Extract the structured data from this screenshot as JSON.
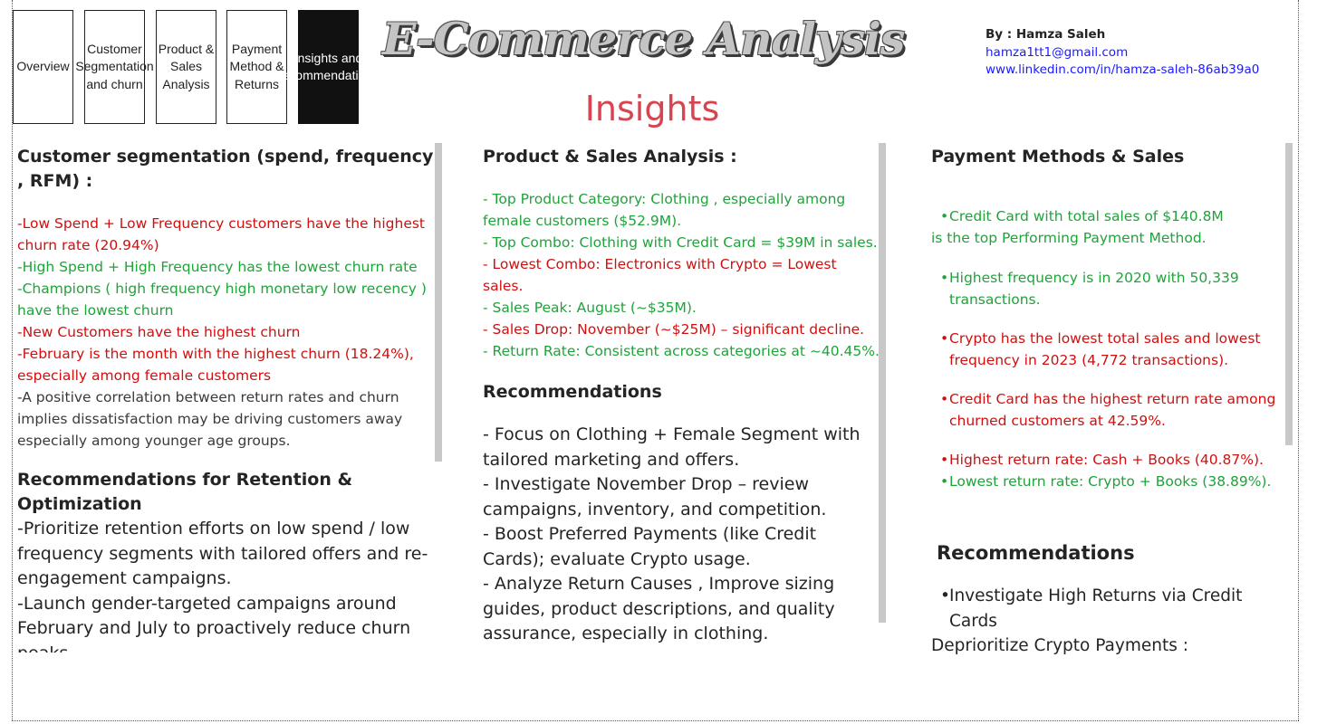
{
  "nav": [
    {
      "label": "Overview",
      "active": false
    },
    {
      "label": "Customer Segmentation and churn",
      "active": false
    },
    {
      "label": "Product & Sales Analysis",
      "active": false
    },
    {
      "label": "Payment Method & Returns",
      "active": false
    },
    {
      "label": "Insights and recommendations",
      "active": true
    }
  ],
  "header": {
    "title": "E-Commerce Analysis",
    "subtitle": "Insights",
    "author_label": "By : Hamza Saleh",
    "email": "hamza1tt1@gmail.com",
    "linkedin": "www.linkedin.com/in/hamza-saleh-86ab39a0"
  },
  "customer": {
    "heading": "Customer segmentation (spend, frequency , RFM) :",
    "insights": [
      {
        "text": "-Low Spend + Low Frequency customers have the highest churn rate (20.94%)",
        "tone": "red"
      },
      {
        "text": "-High Spend + High Frequency has the lowest churn rate",
        "tone": "green"
      },
      {
        "text": "-Champions ( high frequency high monetary low recency ) have the lowest churn",
        "tone": "green"
      },
      {
        "text": "-New Customers have the highest churn",
        "tone": "red"
      },
      {
        "text": "-February is the month with the highest churn (18.24%), especially among female customers",
        "tone": "red"
      },
      {
        "text": "-A positive correlation between return rates and churn implies dissatisfaction may be driving customers away especially among younger age groups.",
        "tone": "dark"
      }
    ],
    "rec_heading": "Recommendations for Retention & Optimization",
    "recommendations": [
      "-Prioritize retention efforts on low spend / low frequency segments with tailored offers and re-engagement campaigns.",
      "-Launch gender-targeted campaigns around February and July to proactively reduce churn peaks."
    ]
  },
  "product": {
    "heading": "Product & Sales Analysis :",
    "insights": [
      {
        "text": "- Top Product Category:   Clothing , especially among female customers ($52.9M).",
        "tone": "green"
      },
      {
        "text": "- Top Combo:    Clothing with Credit Card = $39M in sales.",
        "tone": "green"
      },
      {
        "text": "- Lowest Combo: Electronics with Crypto = Lowest sales.",
        "tone": "red"
      },
      {
        "text": "- Sales Peak: August (~$35M).",
        "tone": "green"
      },
      {
        "text": "- Sales Drop: November (~$25M) – significant decline.",
        "tone": "red"
      },
      {
        "text": "- Return Rate: Consistent across categories at ~40.45%.",
        "tone": "green"
      }
    ],
    "rec_heading": "Recommendations",
    "recommendations": [
      "- Focus on Clothing + Female Segment with tailored marketing and offers.",
      "- Investigate November Drop – review campaigns, inventory, and competition.",
      "- Boost Preferred Payments (like Credit Cards); evaluate Crypto usage.",
      "- Analyze Return Causes  , Improve sizing guides, product descriptions, and quality assurance, especially in clothing."
    ]
  },
  "payment": {
    "heading": "Payment Methods & Sales",
    "insight_first_a": "Credit Card with total sales of $140.8M",
    "insight_first_b": "is the top Performing Payment Method.",
    "insights": [
      {
        "text": "Highest frequency is in 2020 with 50,339 transactions.",
        "tone": "green"
      },
      {
        "text": "Crypto has the lowest total sales and lowest frequency in 2023 (4,772 transactions).",
        "tone": "red"
      },
      {
        "text": "Credit Card has the highest return rate among churned customers at 42.59%.",
        "tone": "red"
      }
    ],
    "return_high": "Highest return rate: Cash + Books (40.87%).",
    "return_low": "Lowest return rate: Crypto + Books (38.89%).",
    "rec_heading": "Recommendations",
    "rec_1": "Investigate High Returns via Credit Cards",
    "rec_2": "Deprioritize Crypto Payments :"
  }
}
